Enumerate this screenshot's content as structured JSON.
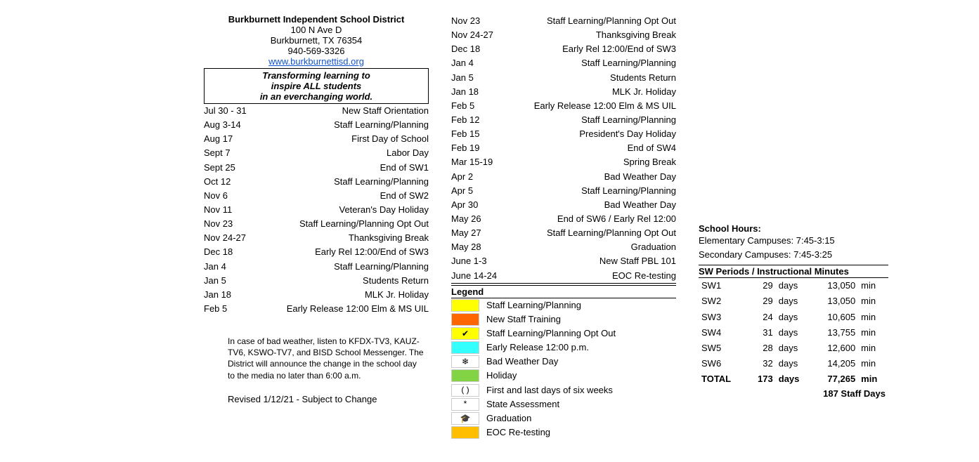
{
  "header": {
    "title": "Burkburnett Independent School District",
    "addr1": "100 N Ave D",
    "addr2": "Burkburnett, TX 76354",
    "phone": "940-569-3326",
    "link": "www.burkburnettisd.org"
  },
  "motto": {
    "l1": "Transforming learning to",
    "l2": "inspire ALL students",
    "l3": "in an everchanging world."
  },
  "events_col1": [
    {
      "date": "Jul 30 - 31",
      "text": "New Staff Orientation"
    },
    {
      "date": "Aug 3-14",
      "text": "Staff Learning/Planning"
    },
    {
      "date": "Aug 17",
      "text": "First Day of School"
    },
    {
      "date": "Sept 7",
      "text": "Labor Day"
    },
    {
      "date": "Sept 25",
      "text": "End of SW1"
    },
    {
      "date": "Oct 12",
      "text": "Staff Learning/Planning"
    },
    {
      "date": "Nov 6",
      "text": "End of SW2"
    },
    {
      "date": "Nov 11",
      "text": "Veteran's Day Holiday"
    },
    {
      "date": "Nov 23",
      "text": "Staff Learning/Planning Opt Out"
    },
    {
      "date": "Nov 24-27",
      "text": "Thanksgiving Break"
    },
    {
      "date": "Dec 18",
      "text": "Early Rel 12:00/End of SW3"
    },
    {
      "date": "Jan 4",
      "text": "Staff Learning/Planning"
    },
    {
      "date": "Jan 5",
      "text": "Students Return"
    },
    {
      "date": "Jan 18",
      "text": "MLK Jr. Holiday"
    },
    {
      "date": "Feb 5",
      "text": "Early Release 12:00 Elm & MS UIL"
    }
  ],
  "events_col2": [
    {
      "date": "Nov 23",
      "text": "Staff Learning/Planning Opt Out"
    },
    {
      "date": "Nov 24-27",
      "text": "Thanksgiving Break"
    },
    {
      "date": "Dec 18",
      "text": "Early Rel 12:00/End of SW3"
    },
    {
      "date": "Jan 4",
      "text": "Staff Learning/Planning"
    },
    {
      "date": "Jan 5",
      "text": "Students Return"
    },
    {
      "date": "Jan 18",
      "text": "MLK Jr. Holiday"
    },
    {
      "date": "Feb 5",
      "text": "Early Release 12:00 Elm & MS UIL"
    },
    {
      "date": "Feb 12",
      "text": "Staff Learning/Planning"
    },
    {
      "date": "Feb 15",
      "text": "President's Day Holiday"
    },
    {
      "date": "Feb 19",
      "text": "End of SW4"
    },
    {
      "date": "Mar 15-19",
      "text": "Spring Break"
    },
    {
      "date": "Apr 2",
      "text": "Bad Weather Day"
    },
    {
      "date": "Apr 5",
      "text": "Staff Learning/Planning"
    },
    {
      "date": "Apr 30",
      "text": "Bad Weather Day"
    },
    {
      "date": "May 26",
      "text": "End of SW6 / Early Rel 12:00"
    },
    {
      "date": "May 27",
      "text": "Staff Learning/Planning Opt Out"
    },
    {
      "date": "May 28",
      "text": "Graduation"
    },
    {
      "date": "June 1-3",
      "text": "New Staff PBL 101"
    },
    {
      "date": "June 14-24",
      "text": "EOC Re-testing"
    }
  ],
  "weather_note": "In case of bad weather, listen to KFDX-TV3, KAUZ-TV6, KSWO-TV7, and BISD School Messenger. The District will announce the change in the school day to the media no later than 6:00 a.m.",
  "revised": "Revised 1/12/21 -  Subject to Change",
  "legend": {
    "title": "Legend",
    "items": [
      {
        "swatch_bg": "#ffff00",
        "swatch_char": "",
        "swatch_fg": "#000",
        "label": "Staff Learning/Planning"
      },
      {
        "swatch_bg": "#ff6600",
        "swatch_char": "",
        "swatch_fg": "#000",
        "label": "New Staff Training"
      },
      {
        "swatch_bg": "#ffff00",
        "swatch_char": "✔",
        "swatch_fg": "#000",
        "label": "Staff Learning/Planning Opt Out"
      },
      {
        "swatch_bg": "#33ffff",
        "swatch_char": "",
        "swatch_fg": "#000",
        "label": "Early Release 12:00 p.m."
      },
      {
        "swatch_bg": "#ffffff",
        "swatch_char": "❄",
        "swatch_fg": "#000",
        "label": "Bad Weather Day"
      },
      {
        "swatch_bg": "#82d445",
        "swatch_char": "",
        "swatch_fg": "#000",
        "label": "Holiday"
      },
      {
        "swatch_bg": "#ffffff",
        "swatch_char": "( )",
        "swatch_fg": "#000",
        "label": "First and last days of six weeks"
      },
      {
        "swatch_bg": "#ffffff",
        "swatch_char": "*",
        "swatch_fg": "#000",
        "label": "State Assessment"
      },
      {
        "swatch_bg": "#ffffff",
        "swatch_char": "🎓",
        "swatch_fg": "#000",
        "label": "Graduation"
      },
      {
        "swatch_bg": "#ffbf00",
        "swatch_char": "",
        "swatch_fg": "#000",
        "label": "EOC Re-testing"
      }
    ]
  },
  "school_hours": {
    "title": "School Hours:",
    "elem": "Elementary Campuses: 7:45-3:15",
    "sec": "Secondary Campuses: 7:45-3:25"
  },
  "sw": {
    "title": "SW Periods / Instructional Minutes",
    "rows": [
      {
        "name": "SW1",
        "days": "29",
        "minutes": "13,050"
      },
      {
        "name": "SW2",
        "days": "29",
        "minutes": "13,050"
      },
      {
        "name": "SW3",
        "days": "24",
        "minutes": "10,605"
      },
      {
        "name": "SW4",
        "days": "31",
        "minutes": "13,755"
      },
      {
        "name": "SW5",
        "days": "28",
        "minutes": "12,600"
      },
      {
        "name": "SW6",
        "days": "32",
        "minutes": "14,205"
      }
    ],
    "total": {
      "name": "TOTAL",
      "days": "173",
      "minutes": "77,265"
    },
    "days_label": "days",
    "min_label": "min",
    "staff_days": "187 Staff Days"
  }
}
